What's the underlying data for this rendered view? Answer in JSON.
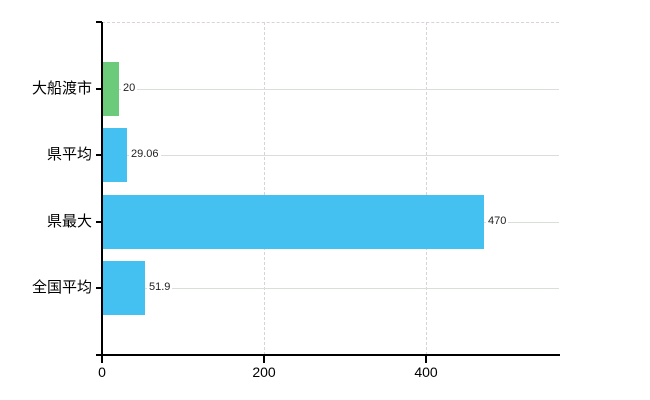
{
  "chart_data": {
    "type": "bar",
    "orientation": "horizontal",
    "title": "",
    "categories": [
      "大船渡市",
      "県平均",
      "県最大",
      "全国平均"
    ],
    "values": [
      20,
      29.06,
      470,
      51.9
    ],
    "value_labels": [
      "20",
      "29.06",
      "470",
      "51.9"
    ],
    "bar_colors": [
      "#6BCB7B",
      "#44C1F0",
      "#44C1F0",
      "#44C1F0"
    ],
    "x_ticks": [
      0,
      200,
      400
    ],
    "x_tick_labels": [
      "0",
      "200",
      "400"
    ],
    "xlim": [
      0,
      564
    ],
    "grid": true,
    "legend": "none",
    "colors": {
      "axis": "#000000",
      "grid_horizontal": "#d9ded9",
      "grid_vertical": "#d9d3d9",
      "category_text": "#000000",
      "value_text": "#222222",
      "tick_text": "#000000",
      "background": "#ffffff"
    }
  }
}
